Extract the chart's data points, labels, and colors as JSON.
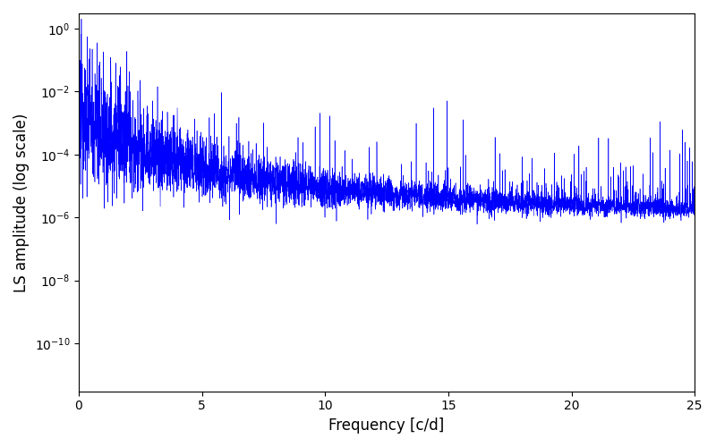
{
  "xlabel": "Frequency [c/d]",
  "ylabel": "LS amplitude (log scale)",
  "line_color": "blue",
  "xlim": [
    0,
    25
  ],
  "ylim": [
    3e-12,
    3.0
  ],
  "yscale": "log",
  "background_color": "#ffffff",
  "figsize": [
    8.0,
    5.0
  ],
  "dpi": 100,
  "seed": 12345,
  "n_points": 5000,
  "freq_max": 25.0,
  "noise_floor": 8e-07,
  "spike_freq": 14.95,
  "spike_amplitude": 0.005,
  "linewidth": 0.4,
  "yticks": [
    1e-10,
    1e-08,
    1e-06,
    0.0001,
    0.01,
    1.0
  ],
  "xticks": [
    0,
    5,
    10,
    15,
    20,
    25
  ]
}
